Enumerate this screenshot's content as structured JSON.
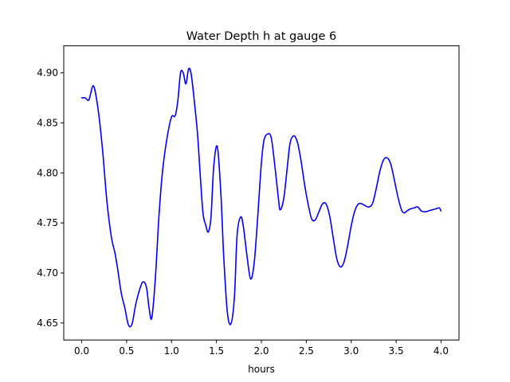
{
  "chart_data": {
    "type": "line",
    "title": "Water Depth h at gauge 6",
    "xlabel": "hours",
    "ylabel": "",
    "xlim": [
      -0.2,
      4.2
    ],
    "ylim": [
      4.633,
      4.927
    ],
    "xticks": [
      "0.0",
      "0.5",
      "1.0",
      "1.5",
      "2.0",
      "2.5",
      "3.0",
      "3.5",
      "4.0"
    ],
    "yticks": [
      "4.65",
      "4.70",
      "4.75",
      "4.80",
      "4.85",
      "4.90"
    ],
    "grid": false,
    "legend": "none",
    "series": [
      {
        "color": "#0000ff",
        "x": [
          0.0,
          0.04,
          0.08,
          0.13,
          0.18,
          0.23,
          0.28,
          0.33,
          0.37,
          0.4,
          0.44,
          0.48,
          0.52,
          0.56,
          0.6,
          0.64,
          0.68,
          0.72,
          0.75,
          0.78,
          0.82,
          0.86,
          0.9,
          0.95,
          1.0,
          1.04,
          1.07,
          1.1,
          1.13,
          1.16,
          1.19,
          1.22,
          1.26,
          1.29,
          1.32,
          1.35,
          1.38,
          1.41,
          1.44,
          1.47,
          1.51,
          1.55,
          1.58,
          1.62,
          1.66,
          1.7,
          1.73,
          1.77,
          1.8,
          1.84,
          1.88,
          1.92,
          1.96,
          2.0,
          2.03,
          2.07,
          2.11,
          2.15,
          2.19,
          2.21,
          2.25,
          2.29,
          2.32,
          2.36,
          2.4,
          2.44,
          2.48,
          2.52,
          2.56,
          2.6,
          2.64,
          2.68,
          2.72,
          2.76,
          2.8,
          2.84,
          2.88,
          2.92,
          2.96,
          3.0,
          3.04,
          3.08,
          3.12,
          3.16,
          3.2,
          3.24,
          3.28,
          3.32,
          3.36,
          3.4,
          3.44,
          3.48,
          3.52,
          3.56,
          3.59,
          3.62,
          3.66,
          3.7,
          3.74,
          3.78,
          3.82,
          3.86,
          3.9,
          3.94,
          3.98,
          4.0
        ],
        "y": [
          4.875,
          4.875,
          4.873,
          4.887,
          4.865,
          4.825,
          4.772,
          4.736,
          4.72,
          4.704,
          4.68,
          4.665,
          4.648,
          4.649,
          4.668,
          4.682,
          4.691,
          4.686,
          4.665,
          4.655,
          4.695,
          4.757,
          4.802,
          4.835,
          4.856,
          4.857,
          4.872,
          4.9,
          4.9,
          4.889,
          4.904,
          4.898,
          4.866,
          4.838,
          4.797,
          4.76,
          4.748,
          4.741,
          4.757,
          4.807,
          4.826,
          4.778,
          4.718,
          4.662,
          4.649,
          4.676,
          4.738,
          4.756,
          4.746,
          4.717,
          4.694,
          4.71,
          4.757,
          4.81,
          4.833,
          4.839,
          4.835,
          4.807,
          4.774,
          4.763,
          4.775,
          4.807,
          4.83,
          4.837,
          4.831,
          4.813,
          4.789,
          4.769,
          4.754,
          4.753,
          4.761,
          4.769,
          4.769,
          4.757,
          4.735,
          4.714,
          4.706,
          4.711,
          4.727,
          4.747,
          4.762,
          4.769,
          4.769,
          4.767,
          4.766,
          4.77,
          4.785,
          4.802,
          4.813,
          4.815,
          4.809,
          4.793,
          4.776,
          4.763,
          4.76,
          4.762,
          4.764,
          4.765,
          4.766,
          4.762,
          4.761,
          4.762,
          4.763,
          4.764,
          4.765,
          4.762
        ]
      }
    ]
  }
}
